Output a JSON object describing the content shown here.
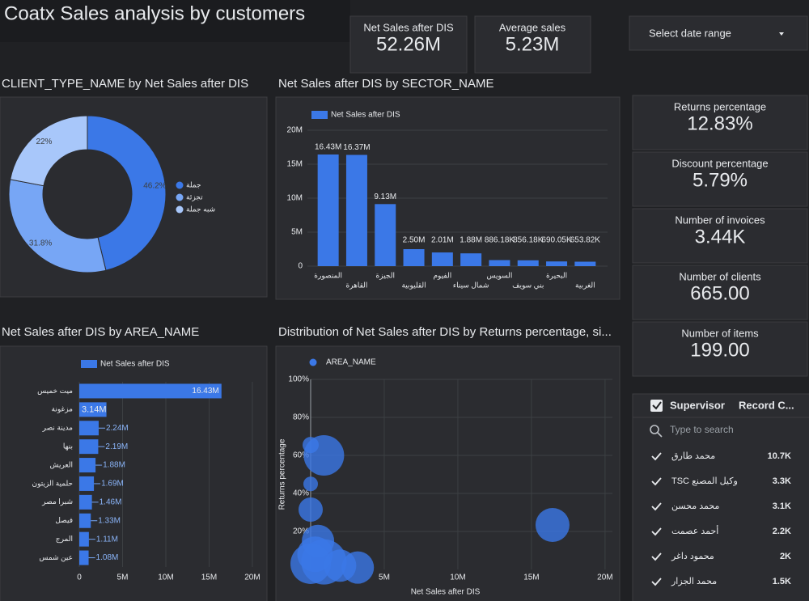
{
  "header": {
    "title": "Coatx Sales analysis by customers",
    "date_range": "Select date range"
  },
  "kpis": [
    {
      "label": "Net Sales after DIS",
      "value": "52.26M"
    },
    {
      "label": "Average sales",
      "value": "5.23M"
    }
  ],
  "side_kpis": [
    {
      "label": "Returns percentage",
      "value": "12.83%"
    },
    {
      "label": "Discount percentage",
      "value": "5.79%"
    },
    {
      "label": "Number of invoices",
      "value": "3.44K"
    },
    {
      "label": "Number of clients",
      "value": "665.00"
    },
    {
      "label": "Number of items",
      "value": "199.00"
    }
  ],
  "chart_data": [
    {
      "type": "pie",
      "title": "CLIENT_TYPE_NAME by Net Sales after DIS",
      "categories": [
        "جملة",
        "تجزئة",
        "شبه جملة"
      ],
      "values": [
        46.2,
        31.8,
        22
      ],
      "value_labels": [
        "46.2%",
        "31.8%",
        "22%"
      ],
      "colors": [
        "#3b78e7",
        "#77a6f5",
        "#a8c7fa"
      ],
      "donut": true,
      "legend": "right"
    },
    {
      "type": "bar",
      "title": "Net Sales after DIS by SECTOR_NAME",
      "categories": [
        "المنصورة",
        "القاهرة",
        "الجيزة",
        "القليوبية",
        "الفيوم",
        "شمال سيناء",
        "السويس",
        "بني سويف",
        "البحيرة",
        "الغربية"
      ],
      "series": [
        {
          "name": "Net Sales after DIS",
          "color": "#3b78e7",
          "values": [
            16.43,
            16.37,
            9.13,
            2.5,
            2.01,
            1.88,
            0.88618,
            0.85618,
            0.69005,
            0.65382
          ],
          "value_labels": [
            "16.43M",
            "16.37M",
            "9.13M",
            "2.50M",
            "2.01M",
            "1.88M",
            "886.18K",
            "856.18K",
            "690.05K",
            "653.82K"
          ]
        }
      ],
      "ylim": [
        0,
        20
      ],
      "yticks": [
        0,
        {
          "value": 5,
          "label": "5M"
        },
        {
          "value": 10,
          "label": "10M"
        },
        {
          "value": 15,
          "label": "15M"
        },
        {
          "value": 20,
          "label": "20M"
        }
      ],
      "grid": true,
      "legend": "top"
    },
    {
      "type": "bar",
      "orientation": "horizontal",
      "title": "Net Sales after DIS by AREA_NAME",
      "categories": [
        "ميت خميس",
        "مزغونة",
        "مدينة نصر",
        "بنها",
        "العريش",
        "حلمية الزيتون",
        "شبرا مصر",
        "فيصل",
        "المرج",
        "عين شمس"
      ],
      "series": [
        {
          "name": "Net Sales after DIS",
          "color": "#3b78e7",
          "values": [
            16.43,
            3.14,
            2.24,
            2.19,
            1.88,
            1.69,
            1.46,
            1.33,
            1.11,
            1.08
          ],
          "value_labels": [
            "16.43M",
            "3.14M",
            "2.24M",
            "2.19M",
            "1.88M",
            "1.69M",
            "1.46M",
            "1.33M",
            "1.11M",
            "1.08M"
          ]
        }
      ],
      "xlim": [
        0,
        21.5
      ],
      "xticks": [
        0,
        {
          "value": 5,
          "label": "5M"
        },
        {
          "value": 10,
          "label": "10M"
        },
        {
          "value": 15,
          "label": "15M"
        },
        {
          "value": 20,
          "label": "20M"
        }
      ],
      "grid": true,
      "legend": "top"
    },
    {
      "type": "scatter",
      "title": "Distribution of Net Sales after DIS by Returns percentage, si...",
      "x_label": "Net Sales after DIS",
      "y_label": "Returns percentage",
      "series": [
        {
          "name": "AREA_NAME",
          "color": "#3b78e7",
          "x": [
            0.0,
            0.9,
            0.0,
            0.0,
            0.5,
            16.43,
            0.0,
            0.9,
            2.0,
            3.2,
            0.3
          ],
          "values": [
            65.5,
            60,
            45,
            31.5,
            15,
            23.4,
            3,
            4,
            2,
            1,
            8
          ],
          "sizes": [
            10,
            25,
            9,
            15,
            20,
            21,
            25,
            28,
            20,
            20,
            22
          ]
        }
      ],
      "xlim": [
        0,
        20.5
      ],
      "ylim": [
        0,
        100
      ],
      "xticks": [
        {
          "value": 5,
          "label": "5M"
        },
        {
          "value": 10,
          "label": "10M"
        },
        {
          "value": 15,
          "label": "15M"
        },
        {
          "value": 20,
          "label": "20M"
        }
      ],
      "yticks": [
        {
          "value": 20,
          "label": "20%"
        },
        {
          "value": 40,
          "label": "40%"
        },
        {
          "value": 60,
          "label": "60%"
        },
        {
          "value": 80,
          "label": "80%"
        },
        {
          "value": 100,
          "label": "100%"
        }
      ],
      "grid": true,
      "legend": "top"
    }
  ],
  "table": {
    "columns": [
      "Supervisor",
      "Record C..."
    ],
    "search_placeholder": "Type to search",
    "rows": [
      [
        "محمد طارق",
        "10.7K"
      ],
      [
        "TSC وكيل المصنع",
        "3.3K"
      ],
      [
        "محمد محسن",
        "3.1K"
      ],
      [
        "أحمد عصمت",
        "2.2K"
      ],
      [
        "محمود داغر",
        "2K"
      ],
      [
        "محمد الجزار",
        "1.5K"
      ]
    ]
  }
}
